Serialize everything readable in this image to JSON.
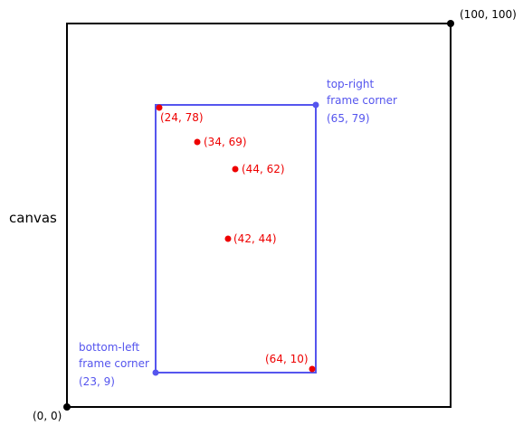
{
  "canvas_label": "canvas",
  "corner_labels": {
    "origin": "(0, 0)",
    "top_right": "(100, 100)"
  },
  "frame": {
    "top_right": {
      "label_line1": "top-right",
      "label_line2": "frame corner",
      "label_line3": "(65, 79)",
      "x": 65,
      "y": 79
    },
    "bottom_left": {
      "label_line1": "bottom-left",
      "label_line2": "frame corner",
      "label_line3": "(23, 9)",
      "x": 23,
      "y": 9
    }
  },
  "points": [
    {
      "label": "(24, 78)",
      "x": 24,
      "y": 78
    },
    {
      "label": "(34, 69)",
      "x": 34,
      "y": 69
    },
    {
      "label": "(44, 62)",
      "x": 44,
      "y": 62
    },
    {
      "label": "(42, 44)",
      "x": 42,
      "y": 44
    },
    {
      "label": "(64, 10)",
      "x": 64,
      "y": 10
    }
  ],
  "colors": {
    "canvas_border": "#000000",
    "frame": "#5555ee",
    "point": "#ee0000",
    "text": "#000000"
  }
}
